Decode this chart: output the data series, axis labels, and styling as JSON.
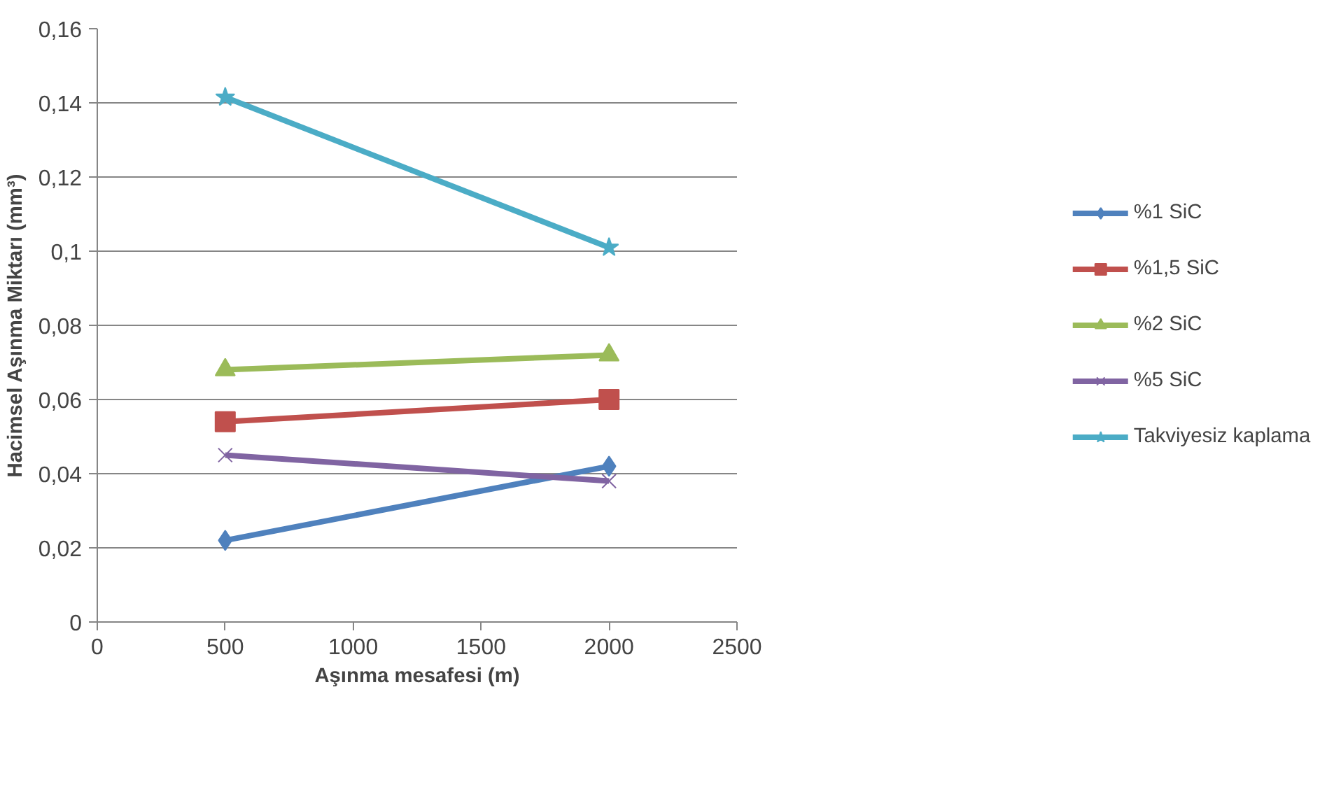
{
  "chart_data": {
    "type": "line",
    "xlabel": "Aşınma mesafesi (m)",
    "ylabel": "Hacimsel Aşınma Miktarı (mm³)",
    "x": [
      500,
      2000
    ],
    "series": [
      {
        "name": "%1 SiC",
        "color": "#4f81bd",
        "marker": "diamond",
        "values": [
          0.022,
          0.042
        ]
      },
      {
        "name": "%1,5 SiC",
        "color": "#c0504d",
        "marker": "square",
        "values": [
          0.054,
          0.06
        ]
      },
      {
        "name": "%2 SiC",
        "color": "#9bbb59",
        "marker": "triangle",
        "values": [
          0.068,
          0.072
        ]
      },
      {
        "name": "%5 SiC",
        "color": "#8064a2",
        "marker": "cross",
        "values": [
          0.045,
          0.038
        ]
      },
      {
        "name": "Takviyesiz kaplama",
        "color": "#4bacc6",
        "marker": "star",
        "values": [
          0.1415,
          0.101
        ]
      }
    ],
    "xlim": [
      0,
      2500
    ],
    "xticks": [
      0,
      500,
      1000,
      1500,
      2000,
      2500
    ],
    "ylim": [
      0,
      0.16
    ],
    "yticks": [
      0,
      {
        "value": 0.02,
        "label": "0,02"
      },
      {
        "value": 0.04,
        "label": "0,04"
      },
      {
        "value": 0.06,
        "label": "0,06"
      },
      {
        "value": 0.08,
        "label": "0,08"
      },
      {
        "value": 0.1,
        "label": "0,1"
      },
      {
        "value": 0.12,
        "label": "0,12"
      },
      {
        "value": 0.14,
        "label": "0,14"
      },
      {
        "value": 0.16,
        "label": "0,16"
      }
    ],
    "grid": "y",
    "legend": "right"
  }
}
